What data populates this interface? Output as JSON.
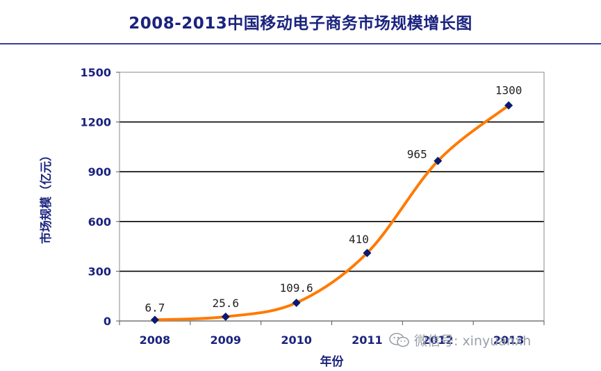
{
  "chart_data": {
    "type": "line",
    "title": "2008-2013中国移动电子商务市场规模增长图",
    "xlabel": "年份",
    "ylabel": "市场规模（亿元）",
    "categories": [
      "2008",
      "2009",
      "2010",
      "2011",
      "2012",
      "2013"
    ],
    "values": [
      6.7,
      25.6,
      109.6,
      410,
      965,
      1300
    ],
    "data_labels": [
      "6.7",
      "25.6",
      "109.6",
      "410",
      "965",
      "1300"
    ],
    "ylim": [
      0,
      1500
    ],
    "yticks": [
      "0",
      "300",
      "600",
      "900",
      "1200",
      "1500"
    ],
    "grid": true,
    "line_color": "#ff7a00",
    "marker_color": "#0a1a6e",
    "axis_color": "#1a237e"
  },
  "watermark": {
    "text": "微信号: xinyuanxh",
    "icon": "wechat-icon"
  }
}
